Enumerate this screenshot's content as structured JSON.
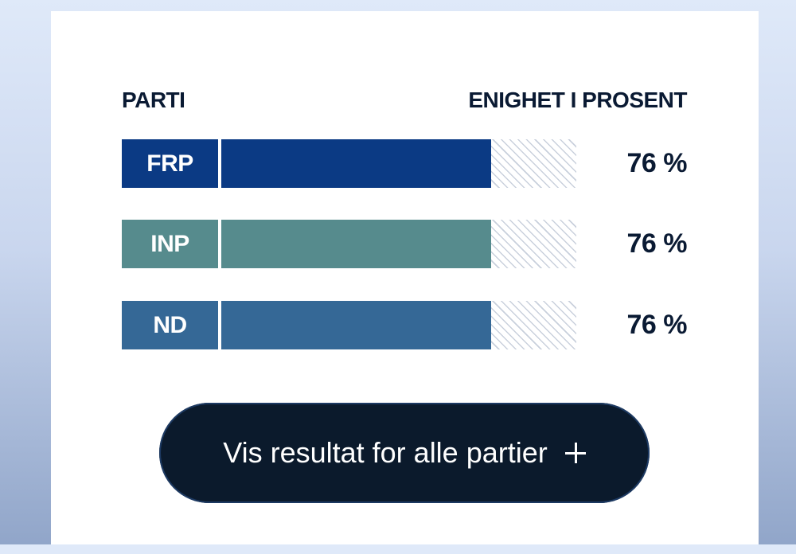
{
  "header": {
    "party_label": "PARTI",
    "agreement_label": "ENIGHET I PROSENT"
  },
  "rows": [
    {
      "party": "FRP",
      "percent_label": "76 %",
      "percent": 76,
      "color": "#0b3a84"
    },
    {
      "party": "INP",
      "percent_label": "76 %",
      "percent": 76,
      "color": "#568b8d"
    },
    {
      "party": "ND",
      "percent_label": "76 %",
      "percent": 76,
      "color": "#356896"
    }
  ],
  "button": {
    "label": "Vis resultat for alle partier",
    "icon": "plus-icon"
  },
  "colors": {
    "text": "#0a1a33",
    "button_bg": "#0b1a2c",
    "hatch": "#c9d0dc"
  }
}
